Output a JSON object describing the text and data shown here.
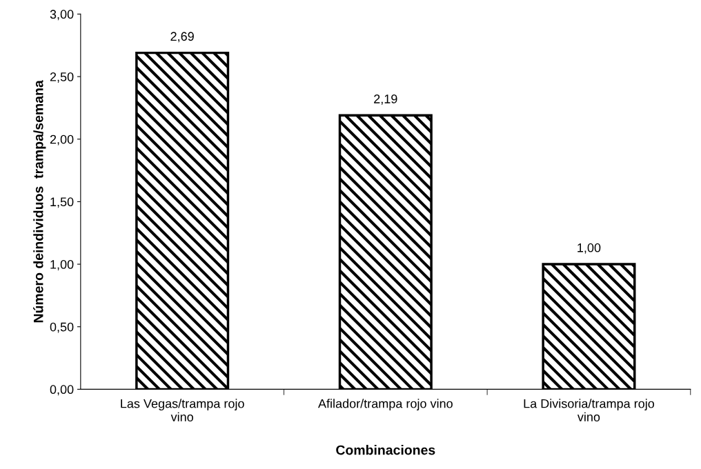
{
  "chart_data": {
    "type": "bar",
    "xlabel": "Combinaciones",
    "ylabel": "Número deindividuos  trampa/semana",
    "categories": [
      "Las Vegas/trampa rojo\nvino",
      "Afilador/trampa rojo vino",
      "La Divisoria/trampa rojo\nvino"
    ],
    "values": [
      2.69,
      2.19,
      1.0
    ],
    "value_labels": [
      "2,69",
      "2,19",
      "1,00"
    ],
    "color": "#000000",
    "ylim": [
      0,
      3
    ],
    "yticks": [
      {
        "value": 0,
        "label": "0,00"
      },
      {
        "value": 0.5,
        "label": "0,50"
      },
      {
        "value": 1,
        "label": "1,00"
      },
      {
        "value": 1.5,
        "label": "1,50"
      },
      {
        "value": 2,
        "label": "2,00"
      },
      {
        "value": 2.5,
        "label": "2,50"
      },
      {
        "value": 3,
        "label": "3,00"
      }
    ],
    "grid": false,
    "legend": false
  }
}
